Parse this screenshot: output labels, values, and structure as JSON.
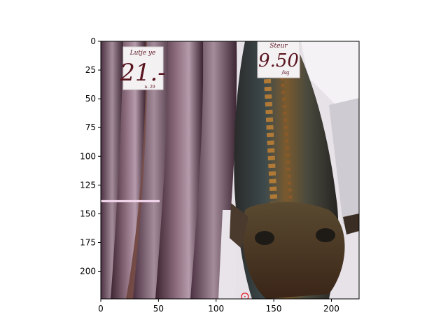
{
  "image": {
    "description_labels": {
      "sign_left_top": "Lutje ye",
      "sign_left_price": "21.-",
      "sign_left_small": "n. 29",
      "sign_right_top": "Steur",
      "sign_right_price": "9.50",
      "sign_right_small": "/kg"
    }
  },
  "axes": {
    "x_ticks": [
      "0",
      "50",
      "100",
      "150",
      "200"
    ],
    "y_ticks": [
      "0",
      "25",
      "50",
      "75",
      "100",
      "125",
      "150",
      "175",
      "200"
    ],
    "xlim": [
      0,
      224
    ],
    "ylim": [
      224,
      0
    ]
  },
  "annotations": {
    "line": {
      "x": [
        0,
        51
      ],
      "y": [
        139,
        139
      ],
      "color": "#f4d8ee"
    },
    "marker": {
      "x": 125,
      "y": 222,
      "color": "#e8141c"
    }
  }
}
